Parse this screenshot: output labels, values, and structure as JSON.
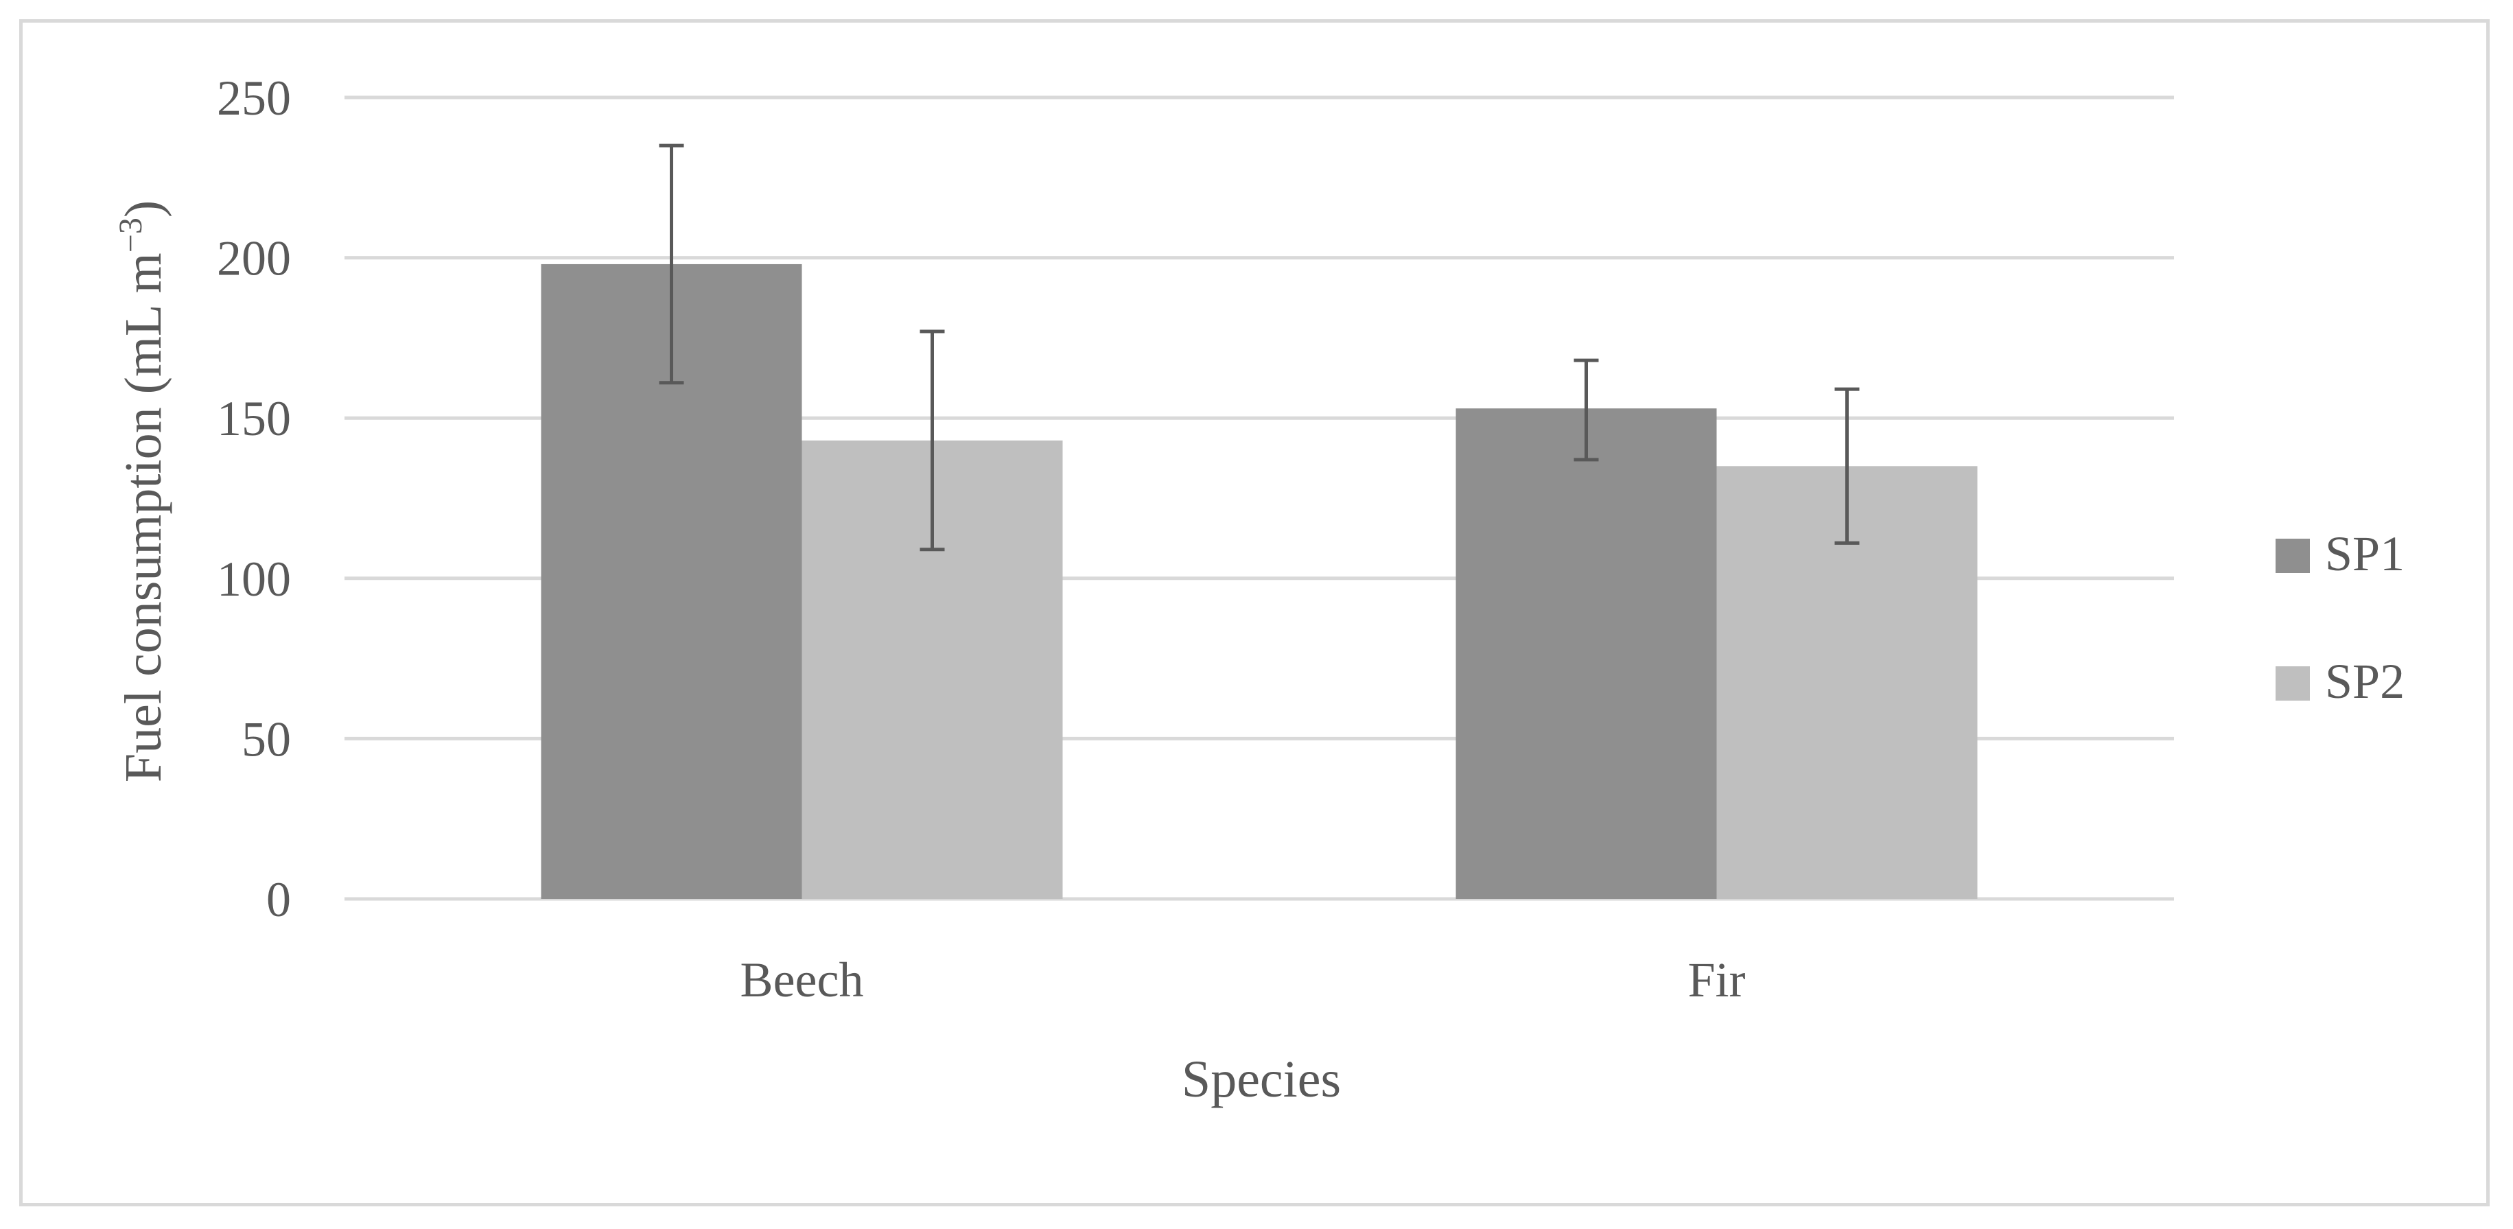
{
  "chart_data": {
    "type": "bar",
    "categories": [
      "Beech",
      "Fir"
    ],
    "series": [
      {
        "name": "SP1",
        "color": "#8f8f8f",
        "values": [
          198,
          153
        ],
        "error_low": [
          161,
          137
        ],
        "error_high": [
          235,
          168
        ]
      },
      {
        "name": "SP2",
        "color": "#bfbfbf",
        "values": [
          143,
          135
        ],
        "error_low": [
          109,
          111
        ],
        "error_high": [
          177,
          159
        ]
      }
    ],
    "xlabel": "Species",
    "ylabel": "Fuel consumption (mL m",
    "ylabel_sup": "−3",
    "ylabel_close": ")",
    "ylim": [
      0,
      250
    ],
    "yticks": [
      "0",
      "50",
      "100",
      "150",
      "200",
      "250"
    ],
    "grid": true,
    "legend_position": "right"
  }
}
